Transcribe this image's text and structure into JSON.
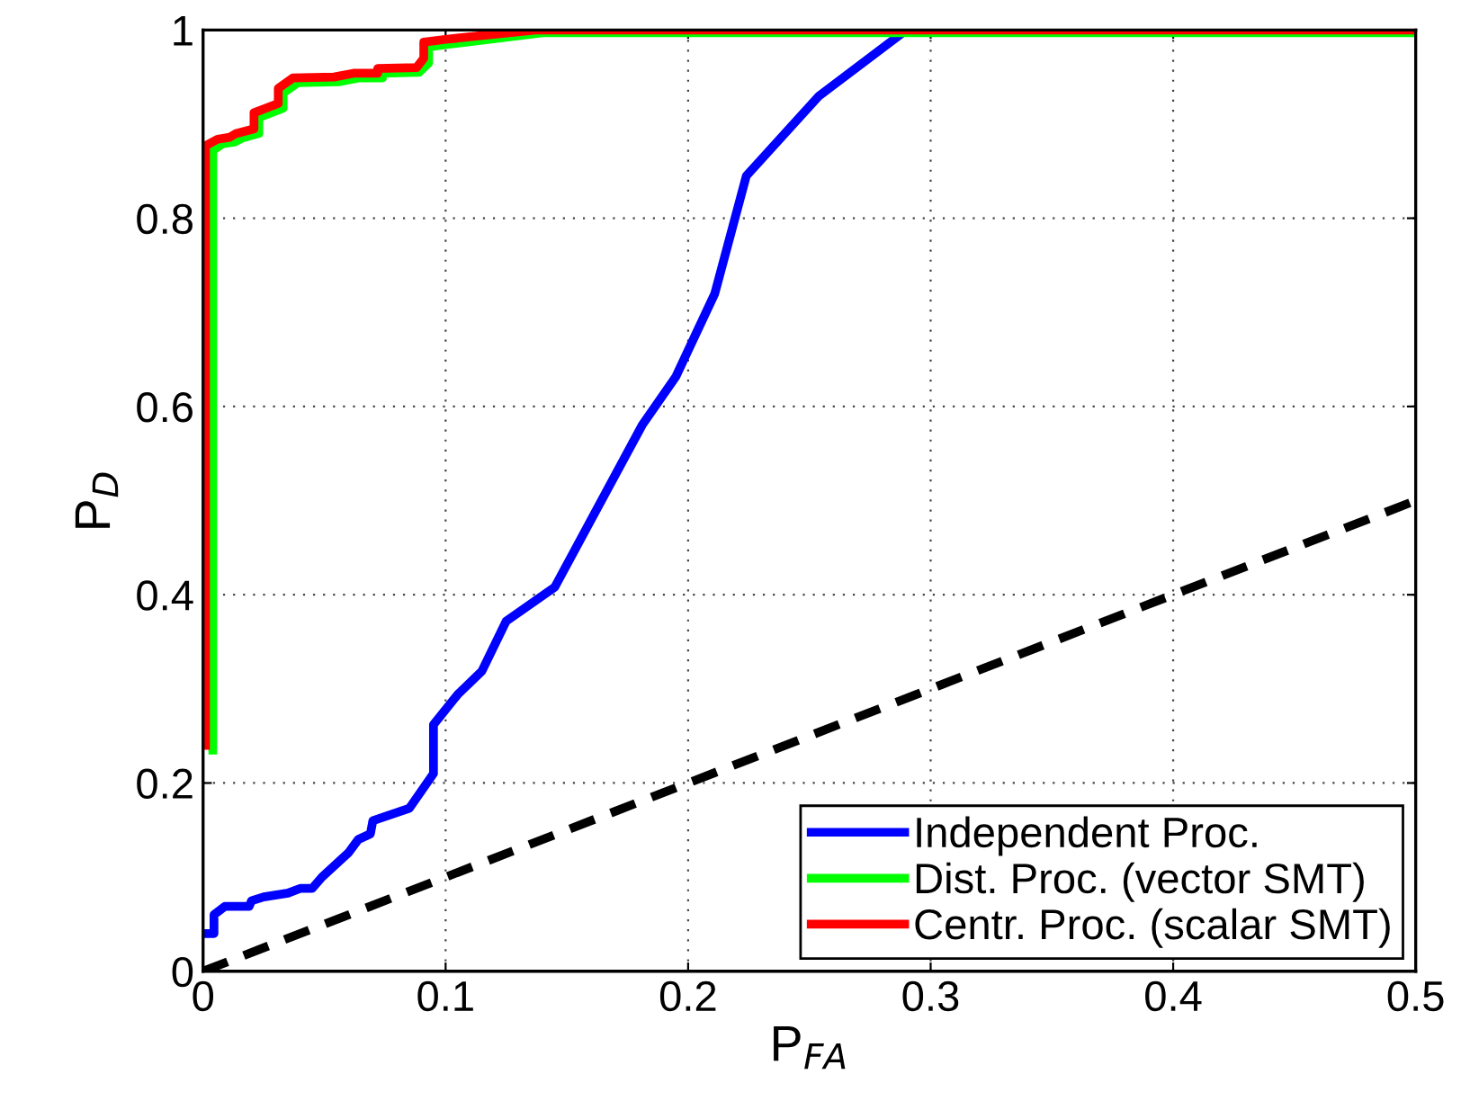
{
  "chart_data": {
    "type": "line",
    "xlabel": "P$_{FA}$",
    "ylabel": "P$_{D}$",
    "xlim": [
      0,
      0.5
    ],
    "ylim": [
      0,
      1
    ],
    "xticks": [
      0,
      0.1,
      0.2,
      0.3,
      0.4,
      0.5
    ],
    "yticks": [
      0,
      0.2,
      0.4,
      0.6,
      0.8,
      1
    ],
    "grid": true,
    "legend": "bottom right",
    "line_style": "solid",
    "marker": "none",
    "series": [
      {
        "name": "Independent Proc.",
        "color": "#0000ff",
        "x": [
          0,
          0.0045,
          0.0045,
          0.009,
          0.019,
          0.02,
          0.025,
          0.035,
          0.04,
          0.045,
          0.049,
          0.06,
          0.064,
          0.069,
          0.07,
          0.085,
          0.095,
          0.095,
          0.105,
          0.115,
          0.125,
          0.145,
          0.181,
          0.195,
          0.211,
          0.224,
          0.254,
          0.29
        ],
        "values": [
          0.04,
          0.04,
          0.06,
          0.069,
          0.069,
          0.075,
          0.079,
          0.083,
          0.088,
          0.088,
          0.1,
          0.126,
          0.14,
          0.146,
          0.16,
          0.173,
          0.21,
          0.262,
          0.294,
          0.319,
          0.372,
          0.408,
          0.58,
          0.632,
          0.72,
          0.845,
          0.93,
          1
        ]
      },
      {
        "name": "Dist. Proc. (vector SMT)",
        "color": "#00ff00",
        "x": [
          0.004,
          0.004,
          0.008,
          0.013,
          0.016,
          0.023,
          0.023,
          0.033,
          0.033,
          0.039,
          0.056,
          0.064,
          0.074,
          0.074,
          0.089,
          0.093,
          0.093,
          0.102,
          0.14,
          0.5
        ],
        "values": [
          0.235,
          0.872,
          0.879,
          0.881,
          0.885,
          0.89,
          0.907,
          0.917,
          0.933,
          0.944,
          0.945,
          0.949,
          0.949,
          0.954,
          0.955,
          0.965,
          0.982,
          0.985,
          0.997,
          0.997
        ]
      },
      {
        "name": "Centr. Proc. (scalar SMT)",
        "color": "#ff0000",
        "x": [
          0.001,
          0.001,
          0.006,
          0.011,
          0.0136,
          0.021,
          0.021,
          0.031,
          0.031,
          0.037,
          0.054,
          0.062,
          0.072,
          0.072,
          0.088,
          0.091,
          0.091,
          0.1,
          0.137,
          0.5
        ],
        "values": [
          0.24,
          0.877,
          0.884,
          0.886,
          0.89,
          0.895,
          0.912,
          0.922,
          0.938,
          0.949,
          0.95,
          0.954,
          0.954,
          0.959,
          0.96,
          0.97,
          0.987,
          0.99,
          1,
          1
        ]
      },
      {
        "color": "#000000",
        "line_style": "dashed",
        "x": [
          0,
          0.5
        ],
        "values": [
          0,
          0.5
        ]
      }
    ]
  }
}
